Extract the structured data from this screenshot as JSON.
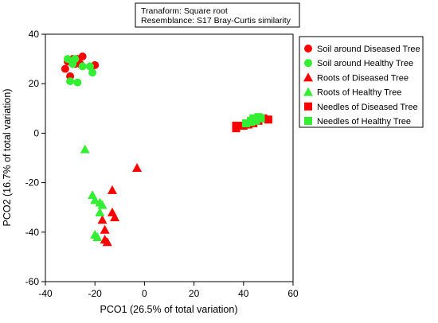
{
  "chart_data": {
    "type": "scatter",
    "info_box": [
      "Tranaform: Square root",
      "Resemblance: S17 Bray-Curtis similarity"
    ],
    "xlabel": "PCO1 (26.5% of total variation)",
    "ylabel": "PCO2 (16.7% of total variation)",
    "xlim": [
      -40,
      60
    ],
    "ylim": [
      -60,
      40
    ],
    "xticks": [
      -40,
      -20,
      0,
      20,
      40,
      60
    ],
    "yticks": [
      -60,
      -40,
      -20,
      0,
      20,
      40
    ],
    "grid": false,
    "legend_position": "top-right",
    "series": [
      {
        "name": "Soil around Diseased Tree",
        "marker": "circle",
        "color": "#ff0000",
        "points": [
          [
            -32,
            26
          ],
          [
            -31,
            29
          ],
          [
            -30,
            23
          ],
          [
            -29,
            30
          ],
          [
            -28,
            28
          ],
          [
            -27,
            30
          ],
          [
            -26,
            28
          ],
          [
            -25,
            31
          ],
          [
            -20,
            27.5
          ]
        ]
      },
      {
        "name": "Soil around Healthy Tree",
        "marker": "circle",
        "color": "#33ee33",
        "points": [
          [
            -31,
            30
          ],
          [
            -30,
            21
          ],
          [
            -29,
            28
          ],
          [
            -28,
            30
          ],
          [
            -27,
            20.5
          ],
          [
            -25,
            27
          ],
          [
            -22,
            27
          ],
          [
            -21,
            24.5
          ]
        ]
      },
      {
        "name": "Roots of Diseased Tree",
        "marker": "triangle",
        "color": "#ff0000",
        "points": [
          [
            -3,
            -14
          ],
          [
            -13,
            -23
          ],
          [
            -13,
            -32
          ],
          [
            -12,
            -34
          ],
          [
            -16,
            -39
          ],
          [
            -17,
            -35
          ],
          [
            -16,
            -43
          ],
          [
            -15,
            -44
          ]
        ]
      },
      {
        "name": "Roots of Healthy Tree",
        "marker": "triangle",
        "color": "#33ee33",
        "points": [
          [
            -24,
            -6.5
          ],
          [
            -21,
            -25
          ],
          [
            -20,
            -27
          ],
          [
            -18,
            -28
          ],
          [
            -18,
            -32
          ],
          [
            -17,
            -29
          ],
          [
            -20,
            -41
          ],
          [
            -19,
            -42
          ]
        ]
      },
      {
        "name": "Needles of Diseased Tree",
        "marker": "square",
        "color": "#ff0000",
        "points": [
          [
            37,
            2
          ],
          [
            37,
            3
          ],
          [
            40,
            3
          ],
          [
            42,
            3.5
          ],
          [
            44,
            4
          ],
          [
            46,
            5
          ],
          [
            48,
            6
          ],
          [
            50,
            5.5
          ]
        ]
      },
      {
        "name": "Needles of Healthy Tree",
        "marker": "square",
        "color": "#33ee33",
        "points": [
          [
            41,
            4
          ],
          [
            43,
            4.5
          ],
          [
            43,
            5
          ],
          [
            44,
            6
          ],
          [
            45,
            5
          ],
          [
            46,
            6.5
          ],
          [
            47,
            6
          ]
        ]
      }
    ]
  }
}
